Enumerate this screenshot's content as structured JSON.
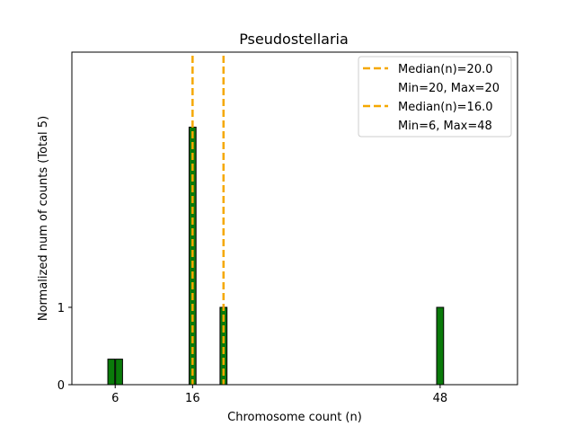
{
  "chart_data": {
    "type": "bar",
    "title": "Pseudostellaria",
    "xlabel": "Chromosome count (n)",
    "ylabel": "Normalized num of counts     (Total 5)",
    "xlim": [
      0.4,
      58
    ],
    "ylim": [
      0,
      4.3
    ],
    "xticks": [
      6,
      16,
      48
    ],
    "yticks": [
      0,
      1
    ],
    "bar_width": 0.9,
    "bar_color": "#0a7a0a",
    "median_color": "#f5a800",
    "series": [
      {
        "name": "counts",
        "bars": [
          {
            "x": 5.5,
            "value": 0.33
          },
          {
            "x": 6.5,
            "value": 0.33
          },
          {
            "x": 16,
            "value": 3.33
          },
          {
            "x": 20,
            "value": 1
          },
          {
            "x": 48,
            "value": 1
          }
        ]
      }
    ],
    "median_lines": [
      {
        "x": 20,
        "label": "Median(n)=20.0",
        "sublabel": "Min=20, Max=20"
      },
      {
        "x": 16,
        "label": "Median(n)=16.0",
        "sublabel": "Min=6, Max=48"
      }
    ]
  }
}
